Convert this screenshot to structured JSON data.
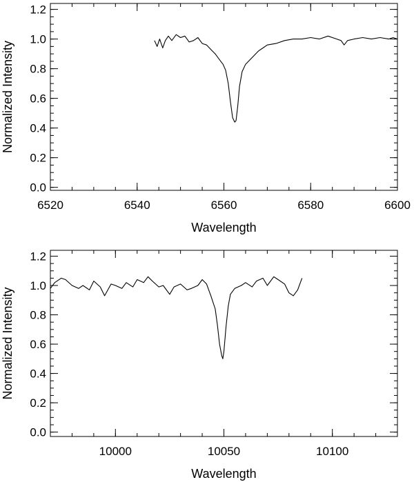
{
  "chart_data": [
    {
      "type": "line",
      "xlabel": "Wavelength",
      "ylabel": "Normalized Intensity",
      "xlim": [
        6520,
        6600
      ],
      "ylim": [
        -0.02,
        1.24
      ],
      "x_major_ticks": [
        6520,
        6540,
        6560,
        6580,
        6600
      ],
      "y_major_ticks": [
        0.0,
        0.2,
        0.4,
        0.6,
        0.8,
        1.0,
        1.2
      ],
      "x_tick_labels": [
        "6520",
        "6540",
        "6560",
        "6580",
        "6600"
      ],
      "y_tick_labels": [
        "0.0",
        "0.2",
        "0.4",
        "0.6",
        "0.8",
        "1.0",
        "1.2"
      ],
      "grid": false,
      "series": [
        {
          "x": [
            6544.0,
            6544.6,
            6545.2,
            6545.9,
            6546.5,
            6547.2,
            6548.0,
            6549.0,
            6550.0,
            6551.0,
            6552.0,
            6553.0,
            6554.0,
            6555.0,
            6556.0,
            6557.0,
            6558.0,
            6559.0,
            6559.8,
            6560.4,
            6561.0,
            6561.5,
            6562.0,
            6562.5,
            6562.8,
            6563.2,
            6563.6,
            6564.2,
            6565.0,
            6566.0,
            6567.0,
            6568.0,
            6569.0,
            6570.0,
            6572.0,
            6574.0,
            6576.0,
            6578.0,
            6580.0,
            6582.0,
            6584.0,
            6586.0,
            6587.0,
            6587.7,
            6588.5,
            6590.0,
            6592.0,
            6594.0,
            6596.0,
            6598.0,
            6599.0,
            6600.0
          ],
          "y": [
            0.99,
            0.95,
            1.0,
            0.94,
            0.99,
            1.02,
            0.99,
            1.03,
            1.01,
            1.02,
            0.98,
            0.99,
            1.01,
            0.97,
            0.96,
            0.93,
            0.9,
            0.86,
            0.83,
            0.79,
            0.7,
            0.58,
            0.47,
            0.44,
            0.45,
            0.55,
            0.68,
            0.78,
            0.83,
            0.86,
            0.89,
            0.92,
            0.94,
            0.96,
            0.97,
            0.99,
            1.0,
            1.0,
            1.01,
            1.0,
            1.02,
            1.0,
            0.99,
            0.96,
            0.99,
            1.0,
            1.01,
            1.0,
            1.01,
            1.0,
            1.01,
            1.0
          ]
        }
      ]
    },
    {
      "type": "line",
      "xlabel": "Wavelength",
      "ylabel": "Normalized Intensity",
      "xlim": [
        9970,
        10130
      ],
      "ylim": [
        -0.03,
        1.24
      ],
      "x_major_ticks": [
        10000,
        10050,
        10100
      ],
      "y_major_ticks": [
        0.0,
        0.2,
        0.4,
        0.6,
        0.8,
        1.0,
        1.2
      ],
      "x_tick_labels": [
        "10000",
        "10050",
        "10100"
      ],
      "y_tick_labels": [
        "0.0",
        "0.2",
        "0.4",
        "0.6",
        "0.8",
        "1.0",
        "1.2"
      ],
      "grid": false,
      "series": [
        {
          "x": [
            9970,
            9972,
            9975,
            9977,
            9980,
            9983,
            9985,
            9988,
            9990,
            9993,
            9995,
            9998,
            10000,
            10003,
            10005,
            10008,
            10010,
            10013,
            10015,
            10017,
            10020,
            10022,
            10025,
            10027,
            10030,
            10033,
            10035,
            10038,
            10040,
            10042,
            10044,
            10046,
            10047,
            10048,
            10049,
            10049.5,
            10050,
            10051,
            10052,
            10053,
            10055,
            10058,
            10060,
            10063,
            10065,
            10068,
            10070,
            10073,
            10075,
            10078,
            10080,
            10082,
            10084,
            10086
          ],
          "y": [
            0.98,
            1.02,
            1.05,
            1.04,
            1.0,
            0.98,
            1.0,
            0.97,
            1.03,
            0.99,
            0.93,
            1.01,
            1.0,
            0.98,
            1.02,
            0.99,
            1.04,
            1.02,
            1.06,
            1.03,
            0.99,
            1.0,
            0.94,
            0.99,
            1.01,
            0.97,
            0.98,
            1.0,
            1.04,
            1.01,
            0.93,
            0.84,
            0.73,
            0.6,
            0.52,
            0.5,
            0.55,
            0.72,
            0.86,
            0.94,
            0.98,
            1.0,
            1.02,
            0.99,
            1.03,
            1.05,
            1.0,
            1.06,
            1.04,
            1.01,
            0.95,
            0.93,
            0.97,
            1.05
          ]
        }
      ]
    }
  ]
}
